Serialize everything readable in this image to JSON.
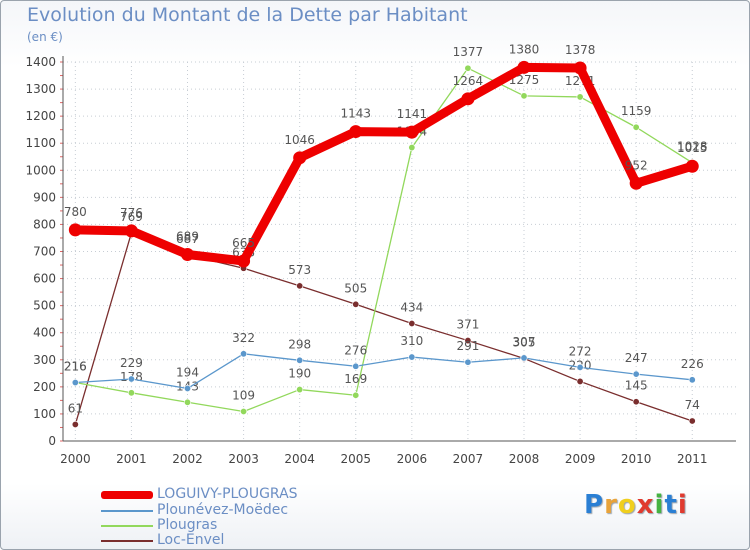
{
  "header": {
    "title": "Evolution du Montant de la Dette par Habitant",
    "unit": "(en €)"
  },
  "logo": {
    "text": "Proxiti",
    "colors": [
      "#2a7fd4",
      "#e8a33a",
      "#f0cf1e",
      "#e03a2f",
      "#46b342",
      "#2a7fd4",
      "#e03a2f"
    ]
  },
  "chart_data": {
    "type": "line",
    "title": "Evolution du Montant de la Dette par Habitant",
    "subtitle": "(en €)",
    "xlabel": "",
    "ylabel": "",
    "x": [
      "2000",
      "2001",
      "2002",
      "2003",
      "2004",
      "2005",
      "2006",
      "2007",
      "2008",
      "2009",
      "2010",
      "2011"
    ],
    "ylim": [
      0,
      1400
    ],
    "yticks": [
      "0",
      "100",
      "200",
      "300",
      "400",
      "500",
      "600",
      "700",
      "800",
      "900",
      "1000",
      "1100",
      "1200",
      "1300",
      "1400"
    ],
    "grid": true,
    "legend_position": "bottom-left",
    "series": [
      {
        "name": "LOGUIVY-PLOUGRAS",
        "color": "#ee0000",
        "values": [
          780,
          776,
          689,
          665,
          1046,
          1143,
          1141,
          1264,
          1380,
          1378,
          952,
          1015
        ],
        "labels": [
          "780",
          "776",
          "689",
          "665",
          "1046",
          "1143",
          "1141",
          "1264",
          "1380",
          "1378",
          "952",
          "1015"
        ]
      },
      {
        "name": "Plounévez-Moëdec",
        "color": "#5b97cc",
        "values": [
          216,
          229,
          194,
          322,
          298,
          276,
          310,
          291,
          307,
          272,
          247,
          226
        ],
        "labels": [
          "216",
          "229",
          "194",
          "322",
          "298",
          "276",
          "310",
          "291",
          "307",
          "272",
          "247",
          "226"
        ]
      },
      {
        "name": "Plougras",
        "color": "#92d85c",
        "values": [
          216,
          178,
          143,
          109,
          190,
          169,
          1084,
          1377,
          1275,
          1271,
          1159,
          1028
        ],
        "labels": [
          "216",
          "178",
          "143",
          "109",
          "190",
          "169",
          "1084",
          "1377",
          "1275",
          "1271",
          "1159",
          "1028"
        ]
      },
      {
        "name": "Loc-Envel",
        "color": "#7a2e2e",
        "values": [
          61,
          769,
          687,
          638,
          573,
          505,
          434,
          371,
          305,
          220,
          145,
          74
        ],
        "labels": [
          "61",
          "769",
          "687",
          "638",
          "573",
          "505",
          "434",
          "371",
          "305",
          "220",
          "145",
          "74"
        ]
      }
    ]
  }
}
